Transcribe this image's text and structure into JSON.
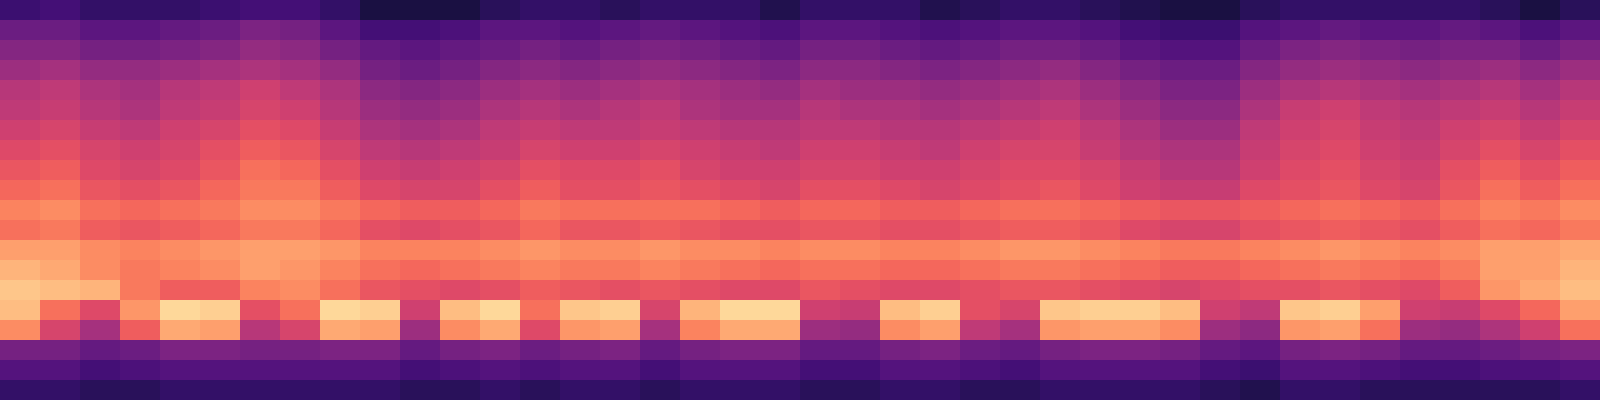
{
  "chart_data": {
    "type": "heatmap",
    "tick_labels": false,
    "color": "magma",
    "xlim": [
      0,
      40
    ],
    "ylim": [
      0,
      20
    ],
    "color_range": [
      0,
      100
    ],
    "cells": [
      [
        20,
        22,
        18,
        18,
        18,
        20,
        22,
        22,
        18,
        12,
        12,
        12,
        16,
        18,
        18,
        16,
        18,
        18,
        18,
        14,
        18,
        18,
        18,
        14,
        16,
        18,
        18,
        16,
        14,
        12,
        12,
        16,
        18,
        18,
        18,
        18,
        18,
        16,
        12,
        16
      ],
      [
        32,
        32,
        28,
        28,
        30,
        32,
        36,
        34,
        28,
        22,
        22,
        24,
        28,
        28,
        26,
        28,
        30,
        28,
        26,
        24,
        28,
        28,
        26,
        24,
        26,
        28,
        28,
        26,
        22,
        20,
        20,
        26,
        28,
        30,
        28,
        28,
        30,
        28,
        24,
        28
      ],
      [
        38,
        38,
        34,
        34,
        36,
        38,
        42,
        40,
        34,
        30,
        28,
        30,
        32,
        34,
        32,
        34,
        36,
        34,
        32,
        30,
        34,
        34,
        32,
        30,
        32,
        34,
        34,
        32,
        28,
        26,
        26,
        32,
        36,
        38,
        36,
        34,
        36,
        36,
        32,
        36
      ],
      [
        44,
        46,
        42,
        42,
        44,
        46,
        48,
        46,
        42,
        34,
        32,
        34,
        38,
        40,
        38,
        40,
        42,
        40,
        38,
        36,
        40,
        40,
        38,
        36,
        38,
        40,
        42,
        38,
        34,
        32,
        32,
        38,
        42,
        44,
        42,
        40,
        42,
        44,
        40,
        44
      ],
      [
        50,
        52,
        48,
        46,
        50,
        52,
        56,
        52,
        48,
        40,
        38,
        40,
        44,
        46,
        44,
        46,
        48,
        46,
        44,
        42,
        46,
        44,
        44,
        42,
        44,
        46,
        48,
        44,
        40,
        36,
        36,
        44,
        48,
        50,
        48,
        46,
        48,
        50,
        46,
        50
      ],
      [
        52,
        54,
        50,
        48,
        52,
        54,
        58,
        56,
        50,
        44,
        42,
        44,
        48,
        50,
        48,
        50,
        52,
        48,
        46,
        46,
        50,
        48,
        48,
        46,
        48,
        50,
        52,
        48,
        44,
        40,
        40,
        48,
        54,
        56,
        52,
        50,
        52,
        54,
        50,
        54
      ],
      [
        56,
        58,
        54,
        52,
        56,
        58,
        62,
        60,
        54,
        48,
        46,
        48,
        52,
        54,
        52,
        52,
        54,
        52,
        50,
        50,
        52,
        52,
        50,
        50,
        52,
        54,
        56,
        52,
        48,
        44,
        44,
        52,
        56,
        58,
        54,
        52,
        56,
        58,
        54,
        58
      ],
      [
        60,
        62,
        58,
        56,
        58,
        62,
        66,
        64,
        58,
        52,
        50,
        52,
        54,
        58,
        56,
        56,
        58,
        56,
        54,
        52,
        56,
        56,
        54,
        52,
        56,
        58,
        58,
        54,
        50,
        48,
        48,
        54,
        58,
        60,
        56,
        54,
        58,
        62,
        58,
        62
      ],
      [
        64,
        66,
        60,
        58,
        60,
        64,
        70,
        68,
        62,
        56,
        54,
        56,
        58,
        62,
        60,
        60,
        62,
        58,
        56,
        56,
        58,
        58,
        56,
        56,
        58,
        60,
        60,
        58,
        54,
        50,
        50,
        56,
        60,
        62,
        58,
        56,
        62,
        66,
        62,
        66
      ],
      [
        68,
        70,
        64,
        62,
        64,
        68,
        72,
        72,
        66,
        60,
        58,
        58,
        62,
        66,
        62,
        62,
        64,
        62,
        60,
        58,
        62,
        62,
        60,
        58,
        60,
        62,
        64,
        60,
        56,
        54,
        54,
        60,
        62,
        64,
        60,
        58,
        64,
        70,
        66,
        70
      ],
      [
        74,
        76,
        70,
        68,
        70,
        72,
        76,
        76,
        72,
        68,
        66,
        66,
        68,
        72,
        70,
        70,
        70,
        70,
        68,
        66,
        68,
        68,
        66,
        66,
        68,
        70,
        70,
        68,
        66,
        64,
        64,
        66,
        68,
        70,
        68,
        66,
        70,
        74,
        72,
        76
      ],
      [
        70,
        72,
        66,
        64,
        66,
        68,
        72,
        72,
        68,
        62,
        60,
        62,
        64,
        68,
        64,
        64,
        66,
        64,
        62,
        62,
        64,
        64,
        62,
        62,
        64,
        66,
        66,
        64,
        60,
        58,
        58,
        62,
        64,
        66,
        64,
        62,
        66,
        70,
        68,
        72
      ],
      [
        80,
        80,
        76,
        74,
        76,
        78,
        80,
        80,
        78,
        74,
        74,
        74,
        76,
        78,
        76,
        76,
        78,
        76,
        76,
        74,
        76,
        76,
        74,
        74,
        76,
        78,
        78,
        76,
        74,
        72,
        72,
        74,
        76,
        78,
        76,
        74,
        76,
        80,
        80,
        82
      ],
      [
        84,
        82,
        76,
        72,
        74,
        76,
        80,
        78,
        74,
        70,
        68,
        70,
        72,
        74,
        72,
        72,
        74,
        72,
        70,
        68,
        70,
        70,
        68,
        68,
        70,
        72,
        72,
        70,
        68,
        66,
        66,
        68,
        70,
        72,
        70,
        68,
        72,
        80,
        80,
        84
      ],
      [
        88,
        86,
        84,
        72,
        66,
        66,
        74,
        76,
        70,
        64,
        62,
        60,
        62,
        66,
        64,
        62,
        64,
        62,
        60,
        60,
        64,
        62,
        60,
        60,
        62,
        64,
        64,
        62,
        60,
        58,
        60,
        62,
        62,
        64,
        62,
        60,
        66,
        78,
        82,
        86
      ],
      [
        86,
        70,
        60,
        78,
        92,
        90,
        62,
        70,
        92,
        90,
        56,
        86,
        92,
        70,
        88,
        90,
        58,
        84,
        92,
        92,
        56,
        54,
        86,
        90,
        62,
        58,
        88,
        90,
        90,
        86,
        56,
        52,
        88,
        90,
        80,
        56,
        54,
        60,
        68,
        80
      ],
      [
        76,
        58,
        46,
        66,
        82,
        80,
        50,
        58,
        82,
        80,
        44,
        76,
        82,
        60,
        78,
        80,
        46,
        74,
        82,
        82,
        44,
        42,
        76,
        80,
        52,
        46,
        78,
        80,
        80,
        76,
        44,
        40,
        78,
        80,
        70,
        44,
        42,
        48,
        56,
        70
      ],
      [
        34,
        34,
        30,
        32,
        36,
        36,
        34,
        34,
        36,
        36,
        30,
        34,
        36,
        32,
        34,
        36,
        30,
        34,
        36,
        36,
        30,
        30,
        34,
        36,
        32,
        30,
        34,
        36,
        36,
        34,
        30,
        28,
        34,
        36,
        34,
        30,
        30,
        32,
        34,
        36
      ],
      [
        26,
        26,
        22,
        24,
        26,
        26,
        26,
        26,
        26,
        26,
        22,
        24,
        26,
        24,
        26,
        26,
        22,
        26,
        26,
        26,
        22,
        22,
        26,
        26,
        24,
        22,
        26,
        26,
        26,
        26,
        22,
        20,
        26,
        26,
        24,
        22,
        22,
        24,
        24,
        26
      ],
      [
        18,
        18,
        16,
        16,
        18,
        18,
        18,
        18,
        18,
        18,
        16,
        16,
        18,
        16,
        18,
        18,
        16,
        18,
        18,
        18,
        16,
        16,
        18,
        18,
        16,
        16,
        18,
        18,
        18,
        18,
        16,
        14,
        18,
        18,
        16,
        16,
        16,
        16,
        16,
        18
      ]
    ]
  }
}
